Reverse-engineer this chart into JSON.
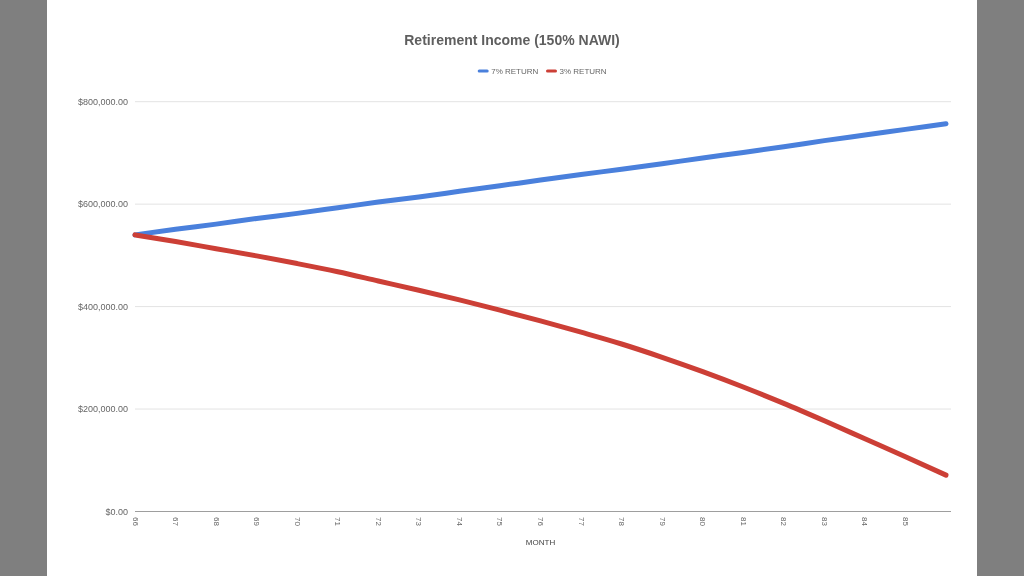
{
  "chart_data": {
    "type": "line",
    "title": "Retirement Income (150% NAWI)",
    "xlabel": "MONTH",
    "categories": [
      "66",
      "67",
      "68",
      "69",
      "70",
      "71",
      "72",
      "73",
      "74",
      "75",
      "76",
      "77",
      "78",
      "79",
      "80",
      "81",
      "82",
      "83",
      "84",
      "85",
      null
    ],
    "series": [
      {
        "name": "7% RETURN",
        "color": "#4a80dc",
        "values": [
          540000,
          551000,
          561000,
          572000,
          582000,
          593000,
          604000,
          614000,
          625000,
          636000,
          647000,
          658000,
          668000,
          679000,
          690000,
          701000,
          712000,
          724000,
          735000,
          746000,
          757000
        ]
      },
      {
        "name": "3% RETURN",
        "color": "#cc3f36",
        "values": [
          540000,
          527000,
          513000,
          499000,
          484000,
          468000,
          450000,
          432000,
          413000,
          393000,
          372000,
          350000,
          327000,
          301000,
          273000,
          243000,
          211000,
          177000,
          142000,
          107000,
          71000
        ]
      }
    ],
    "ylim": [
      0,
      800000
    ],
    "yticks": [
      {
        "value": 0,
        "label": "$0.00"
      },
      {
        "value": 200000,
        "label": "$200,000.00"
      },
      {
        "value": 400000,
        "label": "$400,000.00"
      },
      {
        "value": 600000,
        "label": "$600,000.00"
      },
      {
        "value": 800000,
        "label": "$800,000.00"
      }
    ],
    "grid": "y",
    "legend": "top"
  }
}
